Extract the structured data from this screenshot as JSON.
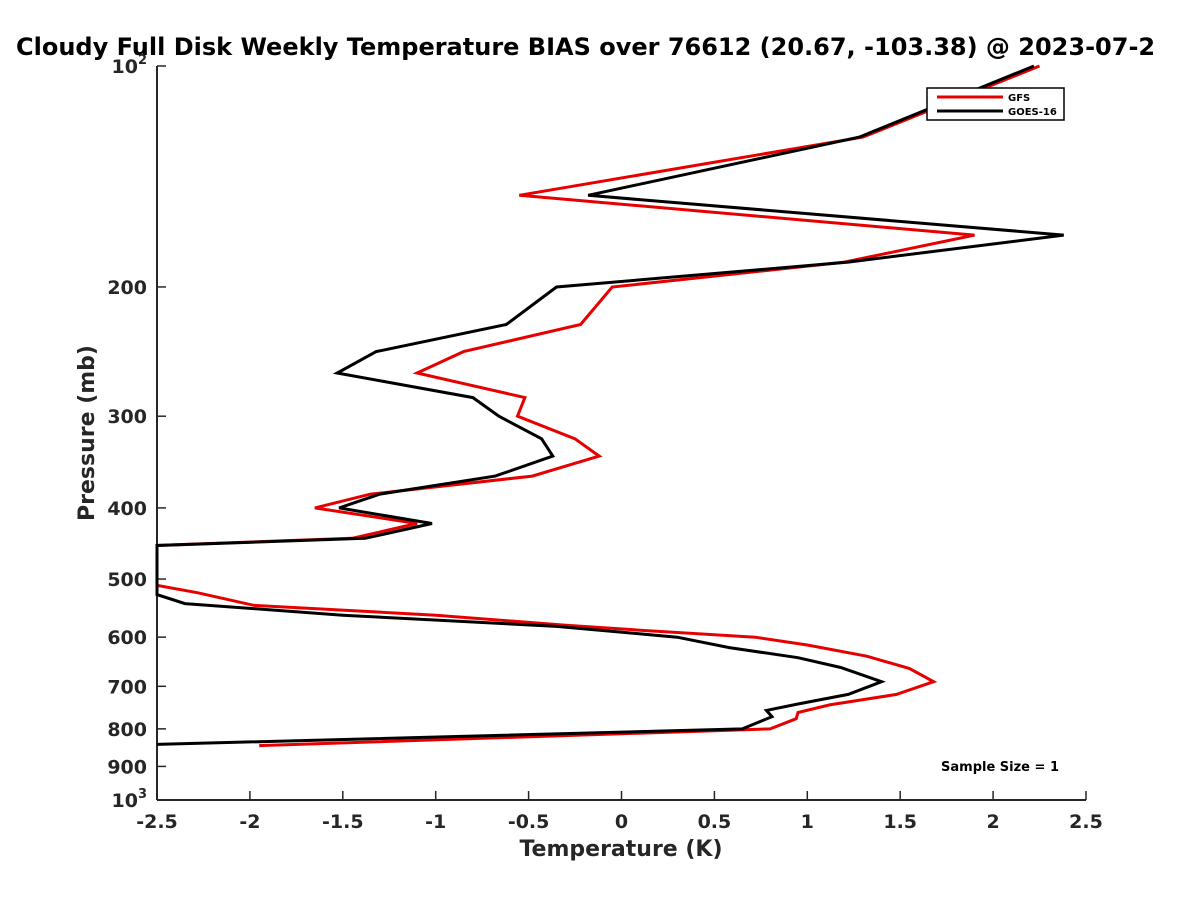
{
  "chart_data": {
    "type": "line",
    "title": "Cloudy Full Disk Weekly Temperature BIAS over 76612 (20.67, -103.38) @ 2023-07-2",
    "xlabel": "Temperature (K)",
    "ylabel": "Pressure (mb)",
    "xlim": [
      -2.5,
      2.5
    ],
    "ylim": [
      100,
      1000
    ],
    "y_scale": "log",
    "y_reversed": true,
    "x_ticks": [
      -2.5,
      -2,
      -1.5,
      -1,
      -0.5,
      0,
      0.5,
      1,
      1.5,
      2,
      2.5
    ],
    "x_tick_labels": [
      "-2.5",
      "-2",
      "-1.5",
      "-1",
      "-0.5",
      "0",
      "0.5",
      "1",
      "1.5",
      "2",
      "2.5"
    ],
    "y_ticks": [
      100,
      200,
      300,
      400,
      500,
      600,
      700,
      800,
      900,
      1000
    ],
    "y_tick_labels": [
      {
        "base": "10",
        "exp": "2"
      },
      {
        "base": "200",
        "exp": ""
      },
      {
        "base": "300",
        "exp": ""
      },
      {
        "base": "400",
        "exp": ""
      },
      {
        "base": "500",
        "exp": ""
      },
      {
        "base": "600",
        "exp": ""
      },
      {
        "base": "700",
        "exp": ""
      },
      {
        "base": "800",
        "exp": ""
      },
      {
        "base": "900",
        "exp": ""
      },
      {
        "base": "10",
        "exp": "3"
      }
    ],
    "grid": false,
    "legend_position": "top-right",
    "annotation": "Sample Size = 1",
    "series": [
      {
        "name": "GFS",
        "color": "#e60000",
        "points": [
          [
            2.25,
            100
          ],
          [
            1.3,
            125
          ],
          [
            -0.55,
            150
          ],
          [
            1.9,
            170
          ],
          [
            1.2,
            185
          ],
          [
            -0.05,
            200
          ],
          [
            -0.22,
            225
          ],
          [
            -0.85,
            245
          ],
          [
            -1.1,
            262
          ],
          [
            -0.52,
            283
          ],
          [
            -0.56,
            300
          ],
          [
            -0.25,
            322
          ],
          [
            -0.12,
            340
          ],
          [
            -0.48,
            362
          ],
          [
            -1.35,
            383
          ],
          [
            -1.65,
            400
          ],
          [
            -1.1,
            420
          ],
          [
            -1.45,
            440
          ],
          [
            -2.5,
            450
          ],
          [
            -2.5,
            510
          ],
          [
            -2.28,
            522
          ],
          [
            -1.98,
            543
          ],
          [
            -1.0,
            560
          ],
          [
            -0.3,
            578
          ],
          [
            0.1,
            587
          ],
          [
            0.72,
            600
          ],
          [
            1.0,
            615
          ],
          [
            1.32,
            637
          ],
          [
            1.55,
            662
          ],
          [
            1.68,
            690
          ],
          [
            1.48,
            718
          ],
          [
            1.12,
            742
          ],
          [
            0.95,
            760
          ],
          [
            0.94,
            775
          ],
          [
            0.8,
            800
          ],
          [
            -1.95,
            843
          ]
        ]
      },
      {
        "name": "GOES-16",
        "color": "#000000",
        "points": [
          [
            2.22,
            100
          ],
          [
            1.28,
            125
          ],
          [
            -0.18,
            150
          ],
          [
            2.38,
            170
          ],
          [
            1.22,
            185
          ],
          [
            -0.35,
            200
          ],
          [
            -0.62,
            225
          ],
          [
            -1.32,
            245
          ],
          [
            -1.53,
            262
          ],
          [
            -0.8,
            283
          ],
          [
            -0.66,
            300
          ],
          [
            -0.43,
            322
          ],
          [
            -0.37,
            340
          ],
          [
            -0.68,
            362
          ],
          [
            -1.3,
            383
          ],
          [
            -1.52,
            400
          ],
          [
            -1.02,
            420
          ],
          [
            -1.38,
            440
          ],
          [
            -2.5,
            450
          ],
          [
            -2.5,
            525
          ],
          [
            -2.35,
            540
          ],
          [
            -1.5,
            560
          ],
          [
            -0.35,
            580
          ],
          [
            0.3,
            600
          ],
          [
            0.58,
            620
          ],
          [
            0.95,
            640
          ],
          [
            1.18,
            660
          ],
          [
            1.4,
            690
          ],
          [
            1.22,
            718
          ],
          [
            0.95,
            740
          ],
          [
            0.78,
            755
          ],
          [
            0.81,
            770
          ],
          [
            0.65,
            800
          ],
          [
            -2.5,
            840
          ]
        ]
      }
    ]
  }
}
